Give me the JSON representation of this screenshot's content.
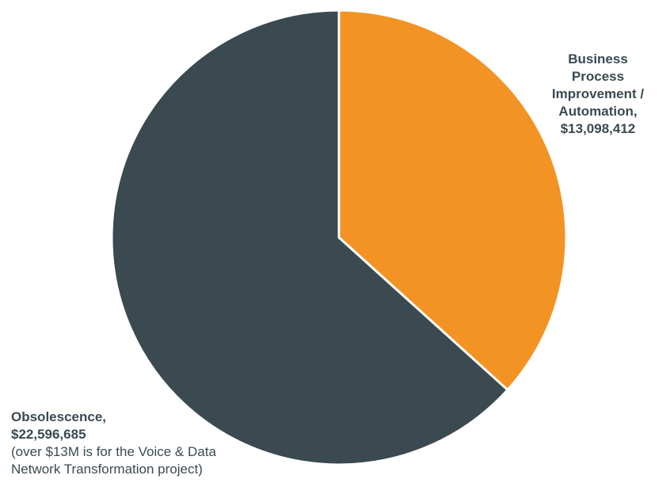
{
  "chart_data": {
    "type": "pie",
    "series": [
      {
        "values": [
          13098412,
          22596685
        ]
      }
    ],
    "slices": [
      {
        "label_lines": [
          "Business",
          "Process",
          "Improvement /",
          "Automation,"
        ],
        "value_text": "$13,098,412",
        "value": 13098412,
        "color": "#F39323"
      },
      {
        "label_lines": [
          "Obsolescence,"
        ],
        "value_text": "$22,596,685",
        "value": 22596685,
        "color": "#3B4950",
        "note_lines": [
          "(over $13M is for the Voice & Data",
          "Network Transformation project)"
        ]
      }
    ],
    "legend": "none",
    "start_angle_deg": 0,
    "direction": "clockwise"
  }
}
